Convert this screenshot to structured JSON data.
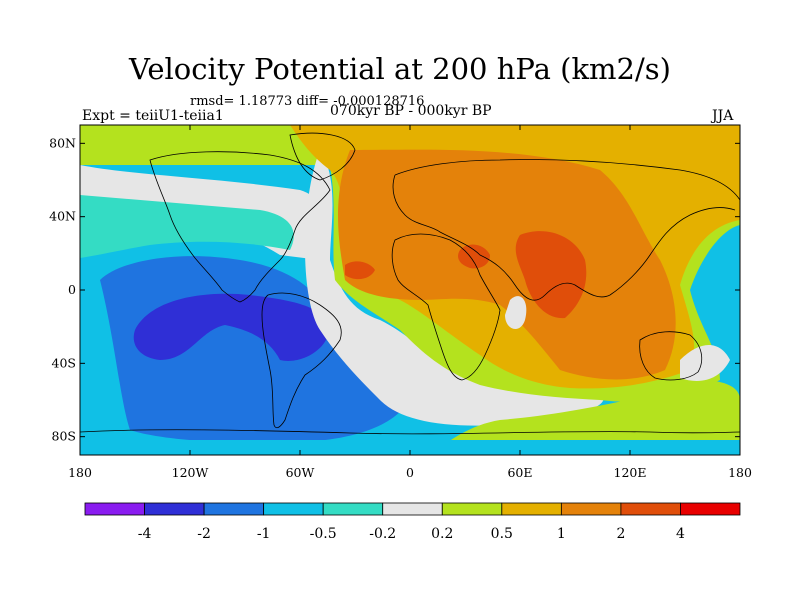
{
  "title": "Velocity Potential at 200 hPa (km2/s)",
  "stats_line": "rmsd= 1.18773 diff= -0.000128716",
  "experiment": "Expt = teiiU1-teiia1",
  "period": "070kyr BP - 000kyr BP",
  "season": "JJA",
  "map": {
    "projection": "cylindrical-equidistant",
    "lon_range": [
      -180,
      180
    ],
    "lat_range": [
      -90,
      90
    ],
    "lat_ticks": [
      {
        "value": 80,
        "label": "80N"
      },
      {
        "value": 40,
        "label": "40N"
      },
      {
        "value": 0,
        "label": "0"
      },
      {
        "value": -40,
        "label": "40S"
      },
      {
        "value": -80,
        "label": "80S"
      }
    ],
    "lon_ticks": [
      {
        "value": -180,
        "label": "180"
      },
      {
        "value": -120,
        "label": "120W"
      },
      {
        "value": -60,
        "label": "60W"
      },
      {
        "value": 0,
        "label": "0"
      },
      {
        "value": 60,
        "label": "60E"
      },
      {
        "value": 120,
        "label": "120E"
      },
      {
        "value": 180,
        "label": "180"
      }
    ],
    "field_features": [
      {
        "kind": "maximum",
        "region": "Arabian Sea / western India",
        "level": "2 to 4"
      },
      {
        "kind": "minimum",
        "region": "South-east Pacific",
        "level": "-4 to -2"
      }
    ]
  },
  "colorbar": {
    "colors": [
      "#8a1cf0",
      "#2f2fd6",
      "#1f74e0",
      "#10c0e6",
      "#34dcc4",
      "#e6e6e6",
      "#b4e21e",
      "#e4b000",
      "#e4820a",
      "#e04e0a",
      "#e80000"
    ],
    "labels": [
      "-4",
      "-2",
      "-1",
      "-0.5",
      "-0.2",
      "0.2",
      "0.5",
      "1",
      "2",
      "4"
    ]
  }
}
